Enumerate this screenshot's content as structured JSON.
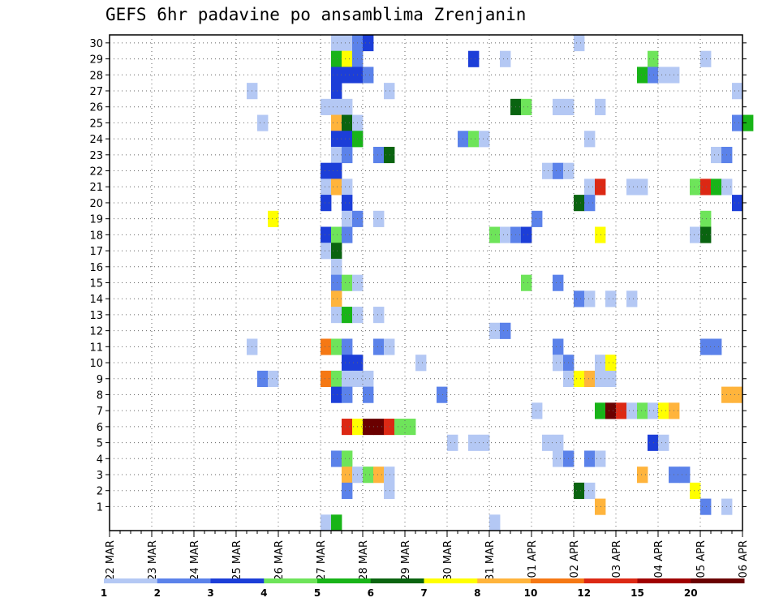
{
  "chart_data": {
    "type": "heatmap",
    "title": "GEFS 6hr padavine po ansamblima Zrenjanin",
    "xlabel": "",
    "ylabel": "",
    "x_ticks": [
      "22 MAR",
      "23 MAR",
      "24 MAR",
      "25 MAR",
      "26 MAR",
      "27 MAR",
      "28 MAR",
      "29 MAR",
      "30 MAR",
      "31 MAR",
      "01 APR",
      "02 APR",
      "03 APR",
      "04 APR",
      "05 APR",
      "06 APR"
    ],
    "y_ticks": [
      1,
      2,
      3,
      4,
      5,
      6,
      7,
      8,
      9,
      10,
      11,
      12,
      13,
      14,
      15,
      16,
      17,
      18,
      19,
      20,
      21,
      22,
      23,
      24,
      25,
      26,
      27,
      28,
      29,
      30
    ],
    "members": 30,
    "steps_per_day": 4,
    "grid": true,
    "colorbar": {
      "levels": [
        "1",
        "2",
        "3",
        "4",
        "5",
        "6",
        "7",
        "8",
        "10",
        "12",
        "15",
        "20"
      ],
      "colors": [
        "#b4c8f4",
        "#5b82ea",
        "#1c3ed8",
        "#6ee45a",
        "#18b418",
        "#0a6410",
        "#ffff00",
        "#ffb43c",
        "#f57814",
        "#dc2814",
        "#a00000",
        "#6a0000"
      ]
    },
    "cells": [
      {
        "m": 30,
        "x": [
          21,
          22
        ],
        "c": 1
      },
      {
        "m": 30,
        "x": [
          23
        ],
        "c": 2
      },
      {
        "m": 30,
        "x": [
          24
        ],
        "c": 3
      },
      {
        "m": 30,
        "x": [
          44
        ],
        "c": 1
      },
      {
        "m": 29,
        "x": [
          21
        ],
        "c": 5
      },
      {
        "m": 29,
        "x": [
          22
        ],
        "c": 7
      },
      {
        "m": 29,
        "x": [
          23
        ],
        "c": 2
      },
      {
        "m": 29,
        "x": [
          34
        ],
        "c": 3
      },
      {
        "m": 29,
        "x": [
          37
        ],
        "c": 1
      },
      {
        "m": 29,
        "x": [
          51
        ],
        "c": 4
      },
      {
        "m": 29,
        "x": [
          56
        ],
        "c": 1
      },
      {
        "m": 28,
        "x": [
          21,
          22,
          23
        ],
        "c": 3
      },
      {
        "m": 28,
        "x": [
          24
        ],
        "c": 2
      },
      {
        "m": 28,
        "x": [
          50
        ],
        "c": 5
      },
      {
        "m": 28,
        "x": [
          51
        ],
        "c": 2
      },
      {
        "m": 28,
        "x": [
          52,
          53
        ],
        "c": 1
      },
      {
        "m": 27,
        "x": [
          13
        ],
        "c": 1
      },
      {
        "m": 27,
        "x": [
          21
        ],
        "c": 3
      },
      {
        "m": 27,
        "x": [
          26
        ],
        "c": 1
      },
      {
        "m": 27,
        "x": [
          59
        ],
        "c": 1
      },
      {
        "m": 26,
        "x": [
          20,
          21,
          22
        ],
        "c": 1
      },
      {
        "m": 26,
        "x": [
          38
        ],
        "c": 6
      },
      {
        "m": 26,
        "x": [
          39
        ],
        "c": 4
      },
      {
        "m": 26,
        "x": [
          42,
          43
        ],
        "c": 1
      },
      {
        "m": 26,
        "x": [
          46
        ],
        "c": 1
      },
      {
        "m": 25,
        "x": [
          14
        ],
        "c": 1
      },
      {
        "m": 25,
        "x": [
          21
        ],
        "c": 8
      },
      {
        "m": 25,
        "x": [
          22
        ],
        "c": 6
      },
      {
        "m": 25,
        "x": [
          23
        ],
        "c": 1
      },
      {
        "m": 25,
        "x": [
          59
        ],
        "c": 2
      },
      {
        "m": 25,
        "x": [
          60
        ],
        "c": 5
      },
      {
        "m": 24,
        "x": [
          21,
          22
        ],
        "c": 3
      },
      {
        "m": 24,
        "x": [
          23
        ],
        "c": 5
      },
      {
        "m": 24,
        "x": [
          33
        ],
        "c": 2
      },
      {
        "m": 24,
        "x": [
          34
        ],
        "c": 4
      },
      {
        "m": 24,
        "x": [
          35
        ],
        "c": 1
      },
      {
        "m": 24,
        "x": [
          45
        ],
        "c": 1
      },
      {
        "m": 23,
        "x": [
          21
        ],
        "c": 1
      },
      {
        "m": 23,
        "x": [
          22
        ],
        "c": 2
      },
      {
        "m": 23,
        "x": [
          25
        ],
        "c": 2
      },
      {
        "m": 23,
        "x": [
          26
        ],
        "c": 6
      },
      {
        "m": 23,
        "x": [
          57
        ],
        "c": 1
      },
      {
        "m": 23,
        "x": [
          58
        ],
        "c": 2
      },
      {
        "m": 22,
        "x": [
          20,
          21
        ],
        "c": 3
      },
      {
        "m": 22,
        "x": [
          41
        ],
        "c": 1
      },
      {
        "m": 22,
        "x": [
          42
        ],
        "c": 2
      },
      {
        "m": 22,
        "x": [
          43
        ],
        "c": 1
      },
      {
        "m": 21,
        "x": [
          20
        ],
        "c": 1
      },
      {
        "m": 21,
        "x": [
          21
        ],
        "c": 8
      },
      {
        "m": 21,
        "x": [
          22
        ],
        "c": 1
      },
      {
        "m": 21,
        "x": [
          45
        ],
        "c": 1
      },
      {
        "m": 21,
        "x": [
          46
        ],
        "c": 10
      },
      {
        "m": 21,
        "x": [
          49,
          50
        ],
        "c": 1
      },
      {
        "m": 21,
        "x": [
          55
        ],
        "c": 4
      },
      {
        "m": 21,
        "x": [
          56
        ],
        "c": 10
      },
      {
        "m": 21,
        "x": [
          57
        ],
        "c": 5
      },
      {
        "m": 21,
        "x": [
          58
        ],
        "c": 1
      },
      {
        "m": 20,
        "x": [
          20
        ],
        "c": 3
      },
      {
        "m": 20,
        "x": [
          22
        ],
        "c": 3
      },
      {
        "m": 20,
        "x": [
          44
        ],
        "c": 6
      },
      {
        "m": 20,
        "x": [
          45
        ],
        "c": 2
      },
      {
        "m": 20,
        "x": [
          59
        ],
        "c": 3
      },
      {
        "m": 19,
        "x": [
          15
        ],
        "c": 7
      },
      {
        "m": 19,
        "x": [
          22
        ],
        "c": 1
      },
      {
        "m": 19,
        "x": [
          23
        ],
        "c": 2
      },
      {
        "m": 19,
        "x": [
          25
        ],
        "c": 1
      },
      {
        "m": 19,
        "x": [
          40
        ],
        "c": 2
      },
      {
        "m": 19,
        "x": [
          56
        ],
        "c": 4
      },
      {
        "m": 18,
        "x": [
          20
        ],
        "c": 3
      },
      {
        "m": 18,
        "x": [
          21
        ],
        "c": 4
      },
      {
        "m": 18,
        "x": [
          22
        ],
        "c": 2
      },
      {
        "m": 18,
        "x": [
          36
        ],
        "c": 4
      },
      {
        "m": 18,
        "x": [
          37
        ],
        "c": 1
      },
      {
        "m": 18,
        "x": [
          38
        ],
        "c": 2
      },
      {
        "m": 18,
        "x": [
          39
        ],
        "c": 3
      },
      {
        "m": 18,
        "x": [
          46
        ],
        "c": 7
      },
      {
        "m": 18,
        "x": [
          55
        ],
        "c": 1
      },
      {
        "m": 18,
        "x": [
          56
        ],
        "c": 6
      },
      {
        "m": 17,
        "x": [
          20
        ],
        "c": 1
      },
      {
        "m": 17,
        "x": [
          21
        ],
        "c": 6
      },
      {
        "m": 16,
        "x": [
          21
        ],
        "c": 1
      },
      {
        "m": 15,
        "x": [
          21
        ],
        "c": 2
      },
      {
        "m": 15,
        "x": [
          22
        ],
        "c": 4
      },
      {
        "m": 15,
        "x": [
          23
        ],
        "c": 1
      },
      {
        "m": 15,
        "x": [
          39
        ],
        "c": 4
      },
      {
        "m": 15,
        "x": [
          42
        ],
        "c": 2
      },
      {
        "m": 14,
        "x": [
          21
        ],
        "c": 8
      },
      {
        "m": 14,
        "x": [
          44
        ],
        "c": 2
      },
      {
        "m": 14,
        "x": [
          45
        ],
        "c": 1
      },
      {
        "m": 14,
        "x": [
          47
        ],
        "c": 1
      },
      {
        "m": 14,
        "x": [
          49
        ],
        "c": 1
      },
      {
        "m": 13,
        "x": [
          21
        ],
        "c": 1
      },
      {
        "m": 13,
        "x": [
          22
        ],
        "c": 5
      },
      {
        "m": 13,
        "x": [
          23
        ],
        "c": 1
      },
      {
        "m": 13,
        "x": [
          25
        ],
        "c": 1
      },
      {
        "m": 12,
        "x": [
          36
        ],
        "c": 1
      },
      {
        "m": 12,
        "x": [
          37
        ],
        "c": 2
      },
      {
        "m": 11,
        "x": [
          13
        ],
        "c": 1
      },
      {
        "m": 11,
        "x": [
          20
        ],
        "c": 9
      },
      {
        "m": 11,
        "x": [
          21
        ],
        "c": 4
      },
      {
        "m": 11,
        "x": [
          22
        ],
        "c": 2
      },
      {
        "m": 11,
        "x": [
          25
        ],
        "c": 2
      },
      {
        "m": 11,
        "x": [
          26
        ],
        "c": 1
      },
      {
        "m": 11,
        "x": [
          42
        ],
        "c": 2
      },
      {
        "m": 11,
        "x": [
          56,
          57
        ],
        "c": 2
      },
      {
        "m": 10,
        "x": [
          22,
          23
        ],
        "c": 3
      },
      {
        "m": 10,
        "x": [
          29
        ],
        "c": 1
      },
      {
        "m": 10,
        "x": [
          42
        ],
        "c": 1
      },
      {
        "m": 10,
        "x": [
          43
        ],
        "c": 2
      },
      {
        "m": 10,
        "x": [
          46
        ],
        "c": 1
      },
      {
        "m": 10,
        "x": [
          47
        ],
        "c": 7
      },
      {
        "m": 9,
        "x": [
          14
        ],
        "c": 2
      },
      {
        "m": 9,
        "x": [
          15
        ],
        "c": 1
      },
      {
        "m": 9,
        "x": [
          20
        ],
        "c": 9
      },
      {
        "m": 9,
        "x": [
          21
        ],
        "c": 4
      },
      {
        "m": 9,
        "x": [
          22,
          23,
          24
        ],
        "c": 1
      },
      {
        "m": 9,
        "x": [
          43
        ],
        "c": 1
      },
      {
        "m": 9,
        "x": [
          44
        ],
        "c": 7
      },
      {
        "m": 9,
        "x": [
          45
        ],
        "c": 8
      },
      {
        "m": 9,
        "x": [
          46,
          47
        ],
        "c": 1
      },
      {
        "m": 8,
        "x": [
          21
        ],
        "c": 3
      },
      {
        "m": 8,
        "x": [
          22
        ],
        "c": 2
      },
      {
        "m": 8,
        "x": [
          24
        ],
        "c": 2
      },
      {
        "m": 8,
        "x": [
          31
        ],
        "c": 2
      },
      {
        "m": 8,
        "x": [
          58,
          59
        ],
        "c": 8
      },
      {
        "m": 7,
        "x": [
          40
        ],
        "c": 1
      },
      {
        "m": 7,
        "x": [
          46
        ],
        "c": 5
      },
      {
        "m": 7,
        "x": [
          47
        ],
        "c": 12
      },
      {
        "m": 7,
        "x": [
          48
        ],
        "c": 10
      },
      {
        "m": 7,
        "x": [
          49
        ],
        "c": 1
      },
      {
        "m": 7,
        "x": [
          50
        ],
        "c": 4
      },
      {
        "m": 7,
        "x": [
          51
        ],
        "c": 1
      },
      {
        "m": 7,
        "x": [
          52
        ],
        "c": 7
      },
      {
        "m": 7,
        "x": [
          53
        ],
        "c": 8
      },
      {
        "m": 6,
        "x": [
          22
        ],
        "c": 10
      },
      {
        "m": 6,
        "x": [
          23
        ],
        "c": 7
      },
      {
        "m": 6,
        "x": [
          24,
          25
        ],
        "c": 12
      },
      {
        "m": 6,
        "x": [
          26
        ],
        "c": 10
      },
      {
        "m": 6,
        "x": [
          27,
          28
        ],
        "c": 4
      },
      {
        "m": 5,
        "x": [
          32
        ],
        "c": 1
      },
      {
        "m": 5,
        "x": [
          34,
          35
        ],
        "c": 1
      },
      {
        "m": 5,
        "x": [
          41,
          42
        ],
        "c": 1
      },
      {
        "m": 5,
        "x": [
          51
        ],
        "c": 3
      },
      {
        "m": 5,
        "x": [
          52
        ],
        "c": 1
      },
      {
        "m": 4,
        "x": [
          21
        ],
        "c": 2
      },
      {
        "m": 4,
        "x": [
          22
        ],
        "c": 4
      },
      {
        "m": 4,
        "x": [
          42
        ],
        "c": 1
      },
      {
        "m": 4,
        "x": [
          43
        ],
        "c": 2
      },
      {
        "m": 4,
        "x": [
          45
        ],
        "c": 2
      },
      {
        "m": 4,
        "x": [
          46
        ],
        "c": 1
      },
      {
        "m": 3,
        "x": [
          22
        ],
        "c": 8
      },
      {
        "m": 3,
        "x": [
          23
        ],
        "c": 1
      },
      {
        "m": 3,
        "x": [
          24
        ],
        "c": 4
      },
      {
        "m": 3,
        "x": [
          25
        ],
        "c": 8
      },
      {
        "m": 3,
        "x": [
          26
        ],
        "c": 1
      },
      {
        "m": 3,
        "x": [
          50
        ],
        "c": 8
      },
      {
        "m": 3,
        "x": [
          53,
          54
        ],
        "c": 2
      },
      {
        "m": 2,
        "x": [
          22
        ],
        "c": 2
      },
      {
        "m": 2,
        "x": [
          26
        ],
        "c": 1
      },
      {
        "m": 2,
        "x": [
          44
        ],
        "c": 6
      },
      {
        "m": 2,
        "x": [
          45
        ],
        "c": 1
      },
      {
        "m": 2,
        "x": [
          55
        ],
        "c": 7
      },
      {
        "m": 1,
        "x": [
          46
        ],
        "c": 8
      },
      {
        "m": 1,
        "x": [
          56
        ],
        "c": 2
      },
      {
        "m": 1,
        "x": [
          58
        ],
        "c": 1
      },
      {
        "m": 0,
        "x": [
          20
        ],
        "c": 1
      },
      {
        "m": 0,
        "x": [
          21
        ],
        "c": 5
      },
      {
        "m": 0,
        "x": [
          36
        ],
        "c": 1
      }
    ]
  }
}
